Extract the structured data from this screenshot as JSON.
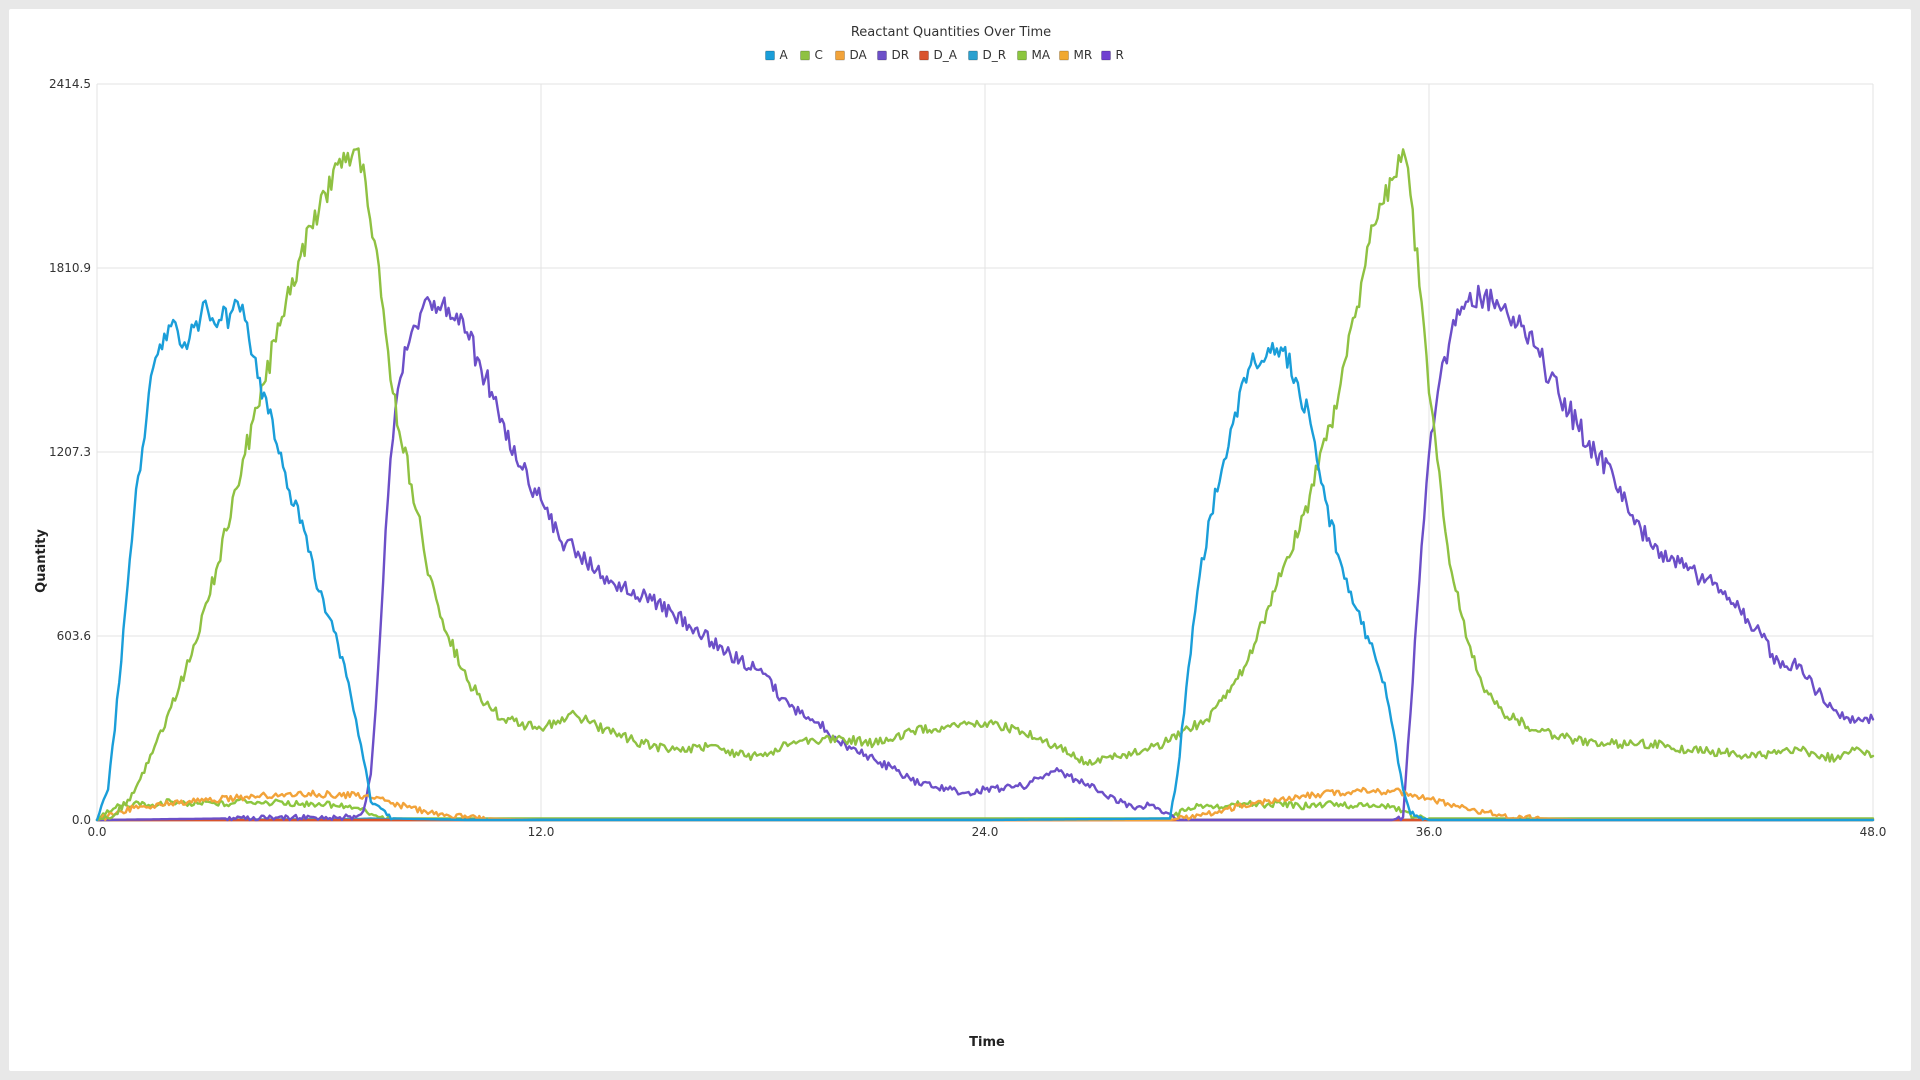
{
  "chart_data": {
    "type": "line",
    "title": "Reactant Quantities Over Time",
    "xlabel": "Time",
    "ylabel": "Quantity",
    "xlim": [
      0,
      48
    ],
    "ylim": [
      0,
      2414.5
    ],
    "x_ticks": [
      "0.0",
      "12.0",
      "24.0",
      "36.0",
      "48.0"
    ],
    "y_ticks": [
      "0.0",
      "603.6",
      "1207.3",
      "1810.9",
      "2414.5"
    ],
    "grid": true,
    "legend_position": "top-center",
    "series": [
      {
        "name": "A",
        "color": "#1a9ed9",
        "x": [
          0,
          0.3,
          0.6,
          1.0,
          1.4,
          1.7,
          2.0,
          2.3,
          2.5,
          2.8,
          3.0,
          3.3,
          3.6,
          3.8,
          4.0,
          4.4,
          4.8,
          5.2,
          5.6,
          6.0,
          6.4,
          6.8,
          7.0,
          7.2,
          7.4,
          8.0,
          10,
          14,
          18,
          24,
          29,
          29.2,
          29.5,
          29.8,
          30.1,
          30.4,
          30.7,
          31.0,
          31.3,
          31.6,
          32.0,
          32.4,
          32.8,
          33.2,
          33.6,
          34.0,
          34.4,
          34.8,
          35.1,
          35.3,
          35.5,
          36.0,
          40,
          44,
          48
        ],
        "y": [
          0,
          100,
          450,
          1000,
          1400,
          1560,
          1620,
          1550,
          1580,
          1650,
          1670,
          1640,
          1660,
          1700,
          1640,
          1450,
          1250,
          1080,
          950,
          750,
          620,
          450,
          330,
          200,
          60,
          5,
          0,
          0,
          0,
          0,
          5,
          150,
          500,
          800,
          1000,
          1150,
          1300,
          1450,
          1500,
          1520,
          1550,
          1450,
          1300,
          1050,
          850,
          700,
          580,
          450,
          250,
          100,
          20,
          0,
          0,
          0,
          0
        ]
      },
      {
        "name": "C",
        "color": "#8fc142",
        "x": [
          0,
          0.5,
          1.0,
          1.5,
          2.0,
          2.5,
          3.0,
          3.5,
          4.0,
          4.5,
          5.0,
          5.5,
          6.0,
          6.5,
          7.0,
          7.2,
          7.5,
          7.8,
          8.0,
          8.5,
          9.0,
          9.5,
          10.0,
          10.5,
          11.0,
          12.0,
          12.8,
          13.5,
          14.5,
          15.5,
          16.5,
          17.5,
          18.0,
          18.5,
          19.0,
          20.0,
          21.0,
          22.0,
          23.0,
          24.0,
          25.0,
          26.0,
          26.5,
          27.0,
          28.0,
          29.0,
          29.5,
          30.0,
          30.5,
          31.0,
          31.5,
          32.0,
          32.5,
          33.0,
          33.5,
          34.0,
          34.5,
          35.0,
          35.3,
          35.5,
          35.8,
          36.0,
          36.5,
          37.0,
          37.5,
          38.0,
          39.0,
          40.0,
          41.0,
          42.0,
          43.0,
          44.0,
          45.0,
          46.0,
          47.0,
          47.5,
          48.0
        ],
        "y": [
          0,
          20,
          90,
          220,
          370,
          520,
          720,
          950,
          1200,
          1430,
          1650,
          1850,
          2000,
          2150,
          2200,
          2150,
          1900,
          1600,
          1400,
          1100,
          800,
          600,
          460,
          380,
          330,
          300,
          350,
          310,
          260,
          230,
          240,
          210,
          210,
          240,
          260,
          270,
          250,
          290,
          310,
          320,
          290,
          240,
          200,
          190,
          220,
          260,
          300,
          330,
          400,
          500,
          650,
          800,
          950,
          1150,
          1350,
          1650,
          1950,
          2100,
          2200,
          2050,
          1700,
          1400,
          900,
          600,
          420,
          350,
          290,
          260,
          250,
          250,
          230,
          220,
          210,
          230,
          200,
          230,
          210
        ]
      },
      {
        "name": "DA",
        "color": "#f2a33a",
        "x": [
          0,
          0.5,
          1.0,
          2.0,
          3.0,
          4.0,
          5.0,
          6.0,
          7.0,
          7.5,
          8.0,
          8.5,
          9.0,
          9.5,
          10.0,
          11.0,
          12.0,
          29.0,
          30.0,
          31.0,
          32.0,
          33.0,
          34.0,
          35.0,
          35.5,
          36.0,
          36.5,
          37.0,
          37.5,
          38.0,
          39.0,
          40.0,
          48.0
        ],
        "y": [
          0,
          20,
          40,
          55,
          65,
          75,
          85,
          85,
          80,
          70,
          55,
          40,
          25,
          15,
          8,
          3,
          0,
          0,
          20,
          50,
          70,
          85,
          95,
          95,
          85,
          70,
          55,
          40,
          25,
          15,
          5,
          2,
          0
        ]
      },
      {
        "name": "DR",
        "color": "#6c4fc8",
        "x": [
          0,
          7.0,
          7.2,
          7.4,
          7.6,
          7.8,
          8.0,
          8.2,
          8.5,
          8.8,
          9.0,
          9.5,
          10.0,
          10.5,
          11.0,
          11.5,
          12.0,
          12.5,
          13.0,
          13.5,
          14.0,
          15.0,
          16.0,
          17.0,
          18.0,
          18.5,
          19.0,
          19.5,
          20.0,
          21.0,
          21.5,
          22.0,
          23.0,
          23.5,
          24.0,
          25.0,
          25.5,
          26.0,
          26.5,
          27.0,
          28.0,
          28.5,
          29.0,
          29.2,
          35.0,
          35.3,
          35.5,
          35.8,
          36.0,
          36.3,
          36.6,
          37.0,
          37.5,
          38.0,
          38.5,
          39.0,
          39.5,
          40.0,
          40.5,
          41.0,
          41.5,
          42.0,
          43.0,
          44.0,
          45.0,
          45.5,
          46.0,
          46.5,
          47.0,
          47.5,
          48.0
        ],
        "y": [
          0,
          10,
          30,
          150,
          500,
          950,
          1250,
          1450,
          1600,
          1680,
          1700,
          1680,
          1600,
          1450,
          1300,
          1150,
          1050,
          920,
          880,
          820,
          770,
          720,
          640,
          550,
          480,
          400,
          350,
          320,
          260,
          200,
          170,
          130,
          100,
          90,
          100,
          110,
          140,
          160,
          130,
          100,
          40,
          50,
          20,
          0,
          0,
          10,
          350,
          900,
          1200,
          1450,
          1600,
          1700,
          1720,
          1680,
          1620,
          1520,
          1400,
          1300,
          1200,
          1120,
          1000,
          900,
          820,
          750,
          600,
          500,
          510,
          420,
          360,
          320,
          330
        ]
      },
      {
        "name": "D_A",
        "color": "#d9532c",
        "x": [
          0,
          48
        ],
        "y": [
          0,
          0
        ]
      },
      {
        "name": "D_R",
        "color": "#2aa0cf",
        "x": [
          0,
          7.0,
          7.4,
          8.0,
          48
        ],
        "y": [
          0,
          3,
          5,
          2,
          0
        ]
      },
      {
        "name": "MA",
        "color": "#8cc63f",
        "x": [
          0,
          0.5,
          1.0,
          1.5,
          2.0,
          2.5,
          3.0,
          3.5,
          4.0,
          4.5,
          5.0,
          5.5,
          6.0,
          6.5,
          7.0,
          7.3,
          7.6,
          8.0,
          10.0,
          14.0,
          20.0,
          24.0,
          28.0,
          29.0,
          29.5,
          30.0,
          30.5,
          31.0,
          31.5,
          32.0,
          32.5,
          33.0,
          33.5,
          34.0,
          34.5,
          35.0,
          35.3,
          35.6,
          36.0,
          40.0,
          44.0,
          48.0
        ],
        "y": [
          0,
          40,
          55,
          50,
          60,
          55,
          60,
          50,
          65,
          55,
          60,
          50,
          55,
          45,
          40,
          25,
          10,
          5,
          5,
          5,
          5,
          5,
          5,
          5,
          40,
          50,
          45,
          55,
          50,
          55,
          45,
          50,
          55,
          45,
          50,
          45,
          30,
          10,
          5,
          5,
          5,
          5
        ]
      },
      {
        "name": "MR",
        "color": "#f0a830",
        "x": [
          0,
          48
        ],
        "y": [
          0,
          0
        ]
      },
      {
        "name": "R",
        "color": "#7040d0",
        "x": [
          0,
          48
        ],
        "y": [
          0,
          0
        ]
      }
    ]
  }
}
